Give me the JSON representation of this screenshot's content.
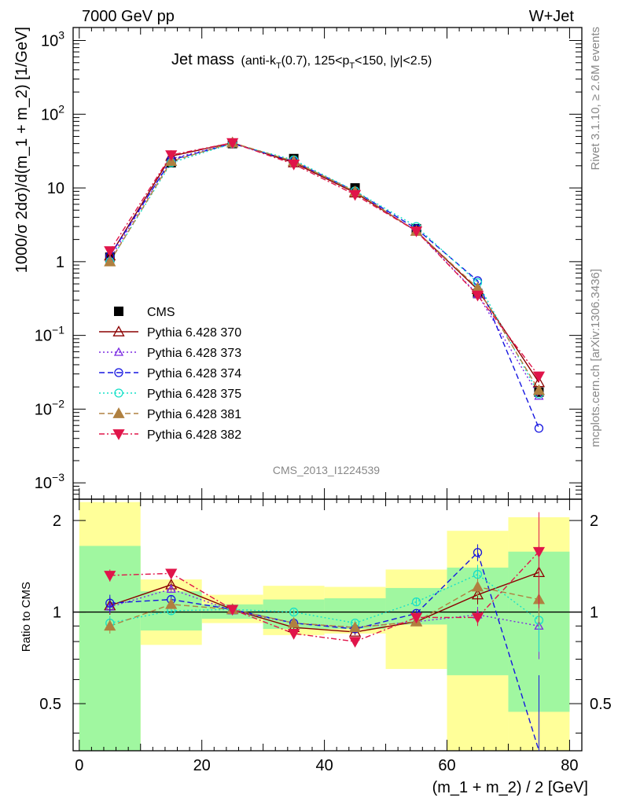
{
  "header": {
    "left": "7000 GeV pp",
    "right": "W+Jet"
  },
  "plot_title": {
    "main": "Jet mass",
    "sub_pre": "(anti-k",
    "sub_T1": "T",
    "sub_mid": "(0.7), 125<p",
    "sub_T2": "T",
    "sub_post": "<150, |y|<2.5)"
  },
  "side_text": {
    "rivet": "Rivet 3.1.10, ≥ 2.6M events",
    "mcplots": "mcplots.cern.ch [arXiv:1306.3436]"
  },
  "watermark": "CMS_2013_I1224539",
  "axes": {
    "ylabel": "1000/σ 2dσ)/d(m_1 + m_2) [1/GeV]",
    "ratio_ylabel": "Ratio to CMS",
    "xlabel": "(m_1 + m_2) / 2 [GeV]",
    "xticks": [
      "0",
      "20",
      "40",
      "60",
      "80"
    ],
    "ratio_ticks": [
      "0.5",
      "1",
      "2"
    ],
    "ratio_ticks_right": [
      "0.5",
      "1",
      "2"
    ]
  },
  "chart_data": {
    "type": "line",
    "x_range": [
      -1,
      82
    ],
    "y_scale": "log",
    "y_range": [
      0.0006,
      1500
    ],
    "y_tick_labels": [
      {
        "value": 1000,
        "base": "10",
        "exp": "3"
      },
      {
        "value": 100,
        "base": "10",
        "exp": "2"
      },
      {
        "value": 10,
        "base": "10",
        "exp": ""
      },
      {
        "value": 1,
        "base": "1",
        "exp": ""
      },
      {
        "value": 0.1,
        "base": "10",
        "exp": "−1"
      },
      {
        "value": 0.01,
        "base": "10",
        "exp": "−2"
      },
      {
        "value": 0.001,
        "base": "10",
        "exp": "−3"
      }
    ],
    "ratio_range": [
      0.35,
      2.35
    ],
    "x": [
      5,
      15,
      25,
      35,
      45,
      55,
      65,
      75
    ],
    "bin_edges": [
      0,
      10,
      20,
      30,
      40,
      50,
      60,
      70,
      80
    ],
    "cms": {
      "name": "CMS",
      "values": [
        1.15,
        22,
        40,
        25,
        10,
        2.8,
        0.37,
        0.017
      ],
      "color": "#000000"
    },
    "band_green_ratio": [
      [
        0.35,
        1.65
      ],
      [
        0.87,
        1.17
      ],
      [
        0.95,
        1.06
      ],
      [
        0.88,
        1.1
      ],
      [
        0.88,
        1.11
      ],
      [
        0.91,
        1.2
      ],
      [
        0.62,
        1.4
      ],
      [
        0.47,
        1.58
      ]
    ],
    "band_yellow_ratio": [
      [
        0.35,
        2.3
      ],
      [
        0.78,
        1.28
      ],
      [
        0.92,
        1.14
      ],
      [
        0.84,
        1.22
      ],
      [
        0.85,
        1.21
      ],
      [
        0.65,
        1.38
      ],
      [
        0.35,
        1.85
      ],
      [
        0.35,
        2.05
      ]
    ],
    "band_colors": {
      "green": "#a0f7a0",
      "yellow": "#ffff99"
    },
    "series": [
      {
        "name": "Pythia 6.428 370",
        "color": "#8b0000",
        "marker": "tri-up-open",
        "dash": "",
        "values": [
          1.2,
          27,
          41,
          22,
          8.6,
          2.6,
          0.42,
          0.023
        ],
        "ratio": [
          1.05,
          1.23,
          1.02,
          0.89,
          0.86,
          0.93,
          1.14,
          1.35
        ],
        "ratio_err": [
          0.07,
          0.03,
          0.02,
          0.02,
          0.02,
          0.03,
          0.08,
          0.3
        ]
      },
      {
        "name": "Pythia 6.428 373",
        "color": "#7b2be2",
        "marker": "tri-up-open-small",
        "dash": "2,3",
        "values": [
          1.08,
          25,
          40,
          23,
          9,
          2.6,
          0.36,
          0.015
        ],
        "ratio": [
          1.04,
          1.19,
          1.01,
          0.92,
          0.89,
          0.93,
          0.98,
          0.9
        ],
        "ratio_err": [
          0.05,
          0.03,
          0.02,
          0.02,
          0.02,
          0.03,
          0.06,
          0.2
        ]
      },
      {
        "name": "Pythia 6.428 374",
        "color": "#1515e0",
        "marker": "circle-open",
        "dash": "7,4",
        "values": [
          1.2,
          24,
          40,
          23,
          9,
          2.8,
          0.55,
          0.0055
        ],
        "ratio": [
          1.07,
          1.1,
          1.02,
          0.92,
          0.88,
          0.99,
          1.57,
          0.32
        ],
        "ratio_err": [
          0.07,
          0.03,
          0.02,
          0.02,
          0.02,
          0.03,
          0.1,
          0.3
        ]
      },
      {
        "name": "Pythia 6.428 375",
        "color": "#15e0c8",
        "marker": "circle-open",
        "dash": "2,3",
        "values": [
          1.0,
          22,
          40,
          24,
          9.1,
          3.0,
          0.52,
          0.016
        ],
        "ratio": [
          0.92,
          1.01,
          1.02,
          1.0,
          0.92,
          1.08,
          1.33,
          0.94
        ],
        "ratio_err": [
          0.05,
          0.03,
          0.02,
          0.02,
          0.02,
          0.03,
          0.1,
          0.2
        ]
      },
      {
        "name": "Pythia 6.428 381",
        "color": "#b08040",
        "marker": "tri-up-filled",
        "dash": "7,4",
        "values": [
          1.0,
          23,
          41,
          23,
          8.9,
          2.6,
          0.44,
          0.018
        ],
        "ratio": [
          0.9,
          1.06,
          1.02,
          0.92,
          0.89,
          0.93,
          1.21,
          1.1
        ],
        "ratio_err": [
          0.05,
          0.03,
          0.02,
          0.02,
          0.02,
          0.03,
          0.08,
          0.2
        ]
      },
      {
        "name": "Pythia 6.428 382",
        "color": "#e0154a",
        "marker": "tri-down-filled",
        "dash": "7,3,2,3",
        "values": [
          1.4,
          28,
          41,
          21,
          8.1,
          2.6,
          0.35,
          0.028
        ],
        "ratio": [
          1.32,
          1.34,
          1.02,
          0.85,
          0.8,
          0.96,
          0.96,
          1.58
        ],
        "ratio_err": [
          0.06,
          0.03,
          0.02,
          0.02,
          0.02,
          0.03,
          0.06,
          0.55
        ]
      }
    ]
  }
}
